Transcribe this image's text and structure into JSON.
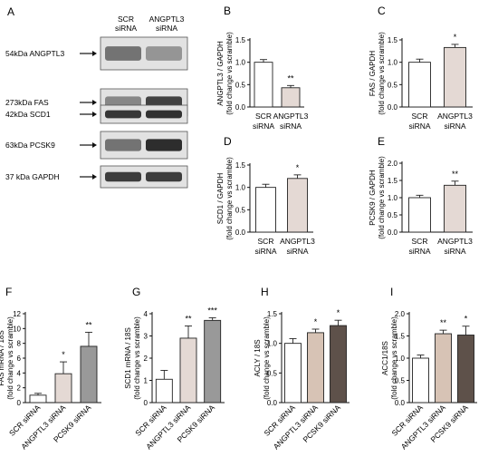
{
  "figure": {
    "panel_a": {
      "letter": "A",
      "lane_headers": [
        {
          "line1": "SCR",
          "line2": "siRNA"
        },
        {
          "line1": "ANGPTL3",
          "line2": "siRNA"
        }
      ],
      "rows": [
        {
          "label": "54kDa ANGPTL3",
          "band1": 0.55,
          "band2": 0.38
        },
        {
          "label": "273kDa FAS",
          "band1": 0.45,
          "band2": 0.8
        },
        {
          "label": "42kDa SCD1",
          "band1": 0.85,
          "band2": 0.88
        },
        {
          "label": "63kDa PCSK9",
          "band1": 0.55,
          "band2": 0.9
        },
        {
          "label": "37 kDa GAPDH",
          "band1": 0.82,
          "band2": 0.82
        }
      ]
    }
  },
  "chart_data": [
    {
      "id": "B",
      "type": "bar",
      "title": "",
      "ylabel_lines": [
        "ANGPTL3 / GAPDH",
        "(fold change vs scramble)"
      ],
      "xlabel": "",
      "categories": [
        [
          "SCR",
          "siRNA"
        ],
        [
          "ANGPTL3",
          "siRNA"
        ]
      ],
      "values": [
        1.0,
        0.43
      ],
      "errors": [
        0.06,
        0.05
      ],
      "significance": [
        "",
        "**"
      ],
      "ylim": [
        0,
        1.5
      ],
      "yticks": [
        "0.0",
        "0.5",
        "1.0",
        "1.5"
      ],
      "colors": [
        "#ffffff",
        "#e4d9d4"
      ],
      "grid": false
    },
    {
      "id": "C",
      "type": "bar",
      "title": "",
      "ylabel_lines": [
        "FAS / GAPDH",
        "(fold change vs scramble)"
      ],
      "xlabel": "",
      "categories": [
        [
          "SCR",
          "siRNA"
        ],
        [
          "ANGPTL3",
          "siRNA"
        ]
      ],
      "values": [
        1.0,
        1.33
      ],
      "errors": [
        0.07,
        0.07
      ],
      "significance": [
        "",
        "*"
      ],
      "ylim": [
        0,
        1.5
      ],
      "yticks": [
        "0.0",
        "0.5",
        "1.0",
        "1.5"
      ],
      "colors": [
        "#ffffff",
        "#e4d9d4"
      ],
      "grid": false
    },
    {
      "id": "D",
      "type": "bar",
      "title": "",
      "ylabel_lines": [
        "SCD1 / GAPDH",
        "(fold change vs scramble)"
      ],
      "xlabel": "",
      "categories": [
        [
          "SCR",
          "siRNA"
        ],
        [
          "ANGPTL3",
          "siRNA"
        ]
      ],
      "values": [
        1.0,
        1.2
      ],
      "errors": [
        0.07,
        0.08
      ],
      "significance": [
        "",
        "*"
      ],
      "ylim": [
        0,
        1.5
      ],
      "yticks": [
        "0.0",
        "0.5",
        "1.0",
        "1.5"
      ],
      "colors": [
        "#ffffff",
        "#e4d9d4"
      ],
      "grid": false
    },
    {
      "id": "E",
      "type": "bar",
      "title": "",
      "ylabel_lines": [
        "PCSK9 / GAPDH",
        "(fold change vs scramble)"
      ],
      "xlabel": "",
      "categories": [
        [
          "SCR",
          "siRNA"
        ],
        [
          "ANGPTL3",
          "siRNA"
        ]
      ],
      "values": [
        1.0,
        1.36
      ],
      "errors": [
        0.07,
        0.12
      ],
      "significance": [
        "",
        "**"
      ],
      "ylim": [
        0,
        2.0
      ],
      "yticks": [
        "0.0",
        "0.5",
        "1.0",
        "1.5",
        "2.0"
      ],
      "colors": [
        "#ffffff",
        "#e4d9d4"
      ],
      "grid": false
    },
    {
      "id": "F",
      "type": "bar",
      "title": "",
      "ylabel_lines": [
        "FAS mRNA / 18S",
        "(fold change vs scramble)"
      ],
      "xlabel": "",
      "categories": [
        "SCR siRNA",
        "ANGPTL3 siRNA",
        "PCSK9 siRNA"
      ],
      "values": [
        1.0,
        3.9,
        7.6
      ],
      "errors": [
        0.25,
        1.6,
        1.9
      ],
      "significance": [
        "",
        "*",
        "**"
      ],
      "ylim": [
        0,
        12
      ],
      "yticks": [
        "0",
        "2",
        "4",
        "6",
        "8",
        "10",
        "12"
      ],
      "colors": [
        "#ffffff",
        "#e4d9d4",
        "#999999"
      ],
      "grid": false
    },
    {
      "id": "G",
      "type": "bar",
      "title": "",
      "ylabel_lines": [
        "SCD1 mRNA / 18S",
        "(fold change vs scramble)"
      ],
      "xlabel": "",
      "categories": [
        "SCR siRNA",
        "ANGPTL3 siRNA",
        "PCSK9 siRNA"
      ],
      "values": [
        1.05,
        2.9,
        3.7
      ],
      "errors": [
        0.4,
        0.55,
        0.12
      ],
      "significance": [
        "",
        "**",
        "***"
      ],
      "ylim": [
        0,
        4
      ],
      "yticks": [
        "0",
        "1",
        "2",
        "3",
        "4"
      ],
      "colors": [
        "#ffffff",
        "#e4d9d4",
        "#999999"
      ],
      "grid": false
    },
    {
      "id": "H",
      "type": "bar",
      "title": "",
      "ylabel_lines": [
        "ACLY / 18S",
        "(fold change vs scramble)"
      ],
      "xlabel": "",
      "categories": [
        "SCR siRNA",
        "ANGPTL3 siRNA",
        "PCSK9 siRNA"
      ],
      "values": [
        1.0,
        1.18,
        1.3
      ],
      "errors": [
        0.08,
        0.06,
        0.09
      ],
      "significance": [
        "",
        "*",
        "*"
      ],
      "ylim": [
        0,
        1.5
      ],
      "yticks": [
        "0.0",
        "0.5",
        "1.0",
        "1.5"
      ],
      "colors": [
        "#ffffff",
        "#d7c3b5",
        "#5e514a"
      ],
      "grid": false
    },
    {
      "id": "I",
      "type": "bar",
      "title": "",
      "ylabel_lines": [
        "ACC1/18S",
        "(fold change vs scramble)"
      ],
      "xlabel": "",
      "categories": [
        "SCR siRNA",
        "ANGPTL3 siRNA",
        "PCSK9 siRNA"
      ],
      "values": [
        1.0,
        1.55,
        1.52
      ],
      "errors": [
        0.07,
        0.08,
        0.2
      ],
      "significance": [
        "",
        "**",
        "*"
      ],
      "ylim": [
        0,
        2.0
      ],
      "yticks": [
        "0.0",
        "0.5",
        "1.0",
        "1.5",
        "2.0"
      ],
      "colors": [
        "#ffffff",
        "#d7c3b5",
        "#5e514a"
      ],
      "grid": false
    }
  ]
}
